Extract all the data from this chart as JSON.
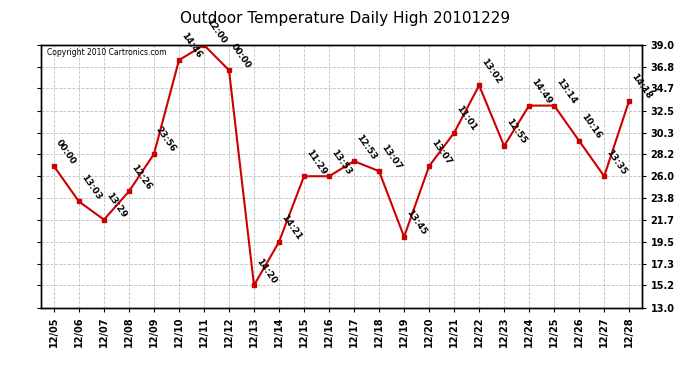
{
  "title": "Outdoor Temperature Daily High 20101229",
  "copyright": "Copyright 2010 Cartronics.com",
  "dates": [
    "12/05",
    "12/06",
    "12/07",
    "12/08",
    "12/09",
    "12/10",
    "12/11",
    "12/12",
    "12/13",
    "12/14",
    "12/15",
    "12/16",
    "12/17",
    "12/18",
    "12/19",
    "12/20",
    "12/21",
    "12/22",
    "12/23",
    "12/24",
    "12/25",
    "12/26",
    "12/27",
    "12/28"
  ],
  "temperatures": [
    27.0,
    23.5,
    21.7,
    24.5,
    28.2,
    37.5,
    39.0,
    36.5,
    15.2,
    19.5,
    26.0,
    26.0,
    27.5,
    26.5,
    20.0,
    27.0,
    30.3,
    35.0,
    29.0,
    33.0,
    33.0,
    29.5,
    26.0,
    33.5
  ],
  "times": [
    "00:00",
    "13:03",
    "13:29",
    "12:26",
    "23:56",
    "14:46",
    "12:00",
    "00:00",
    "14:20",
    "14:21",
    "11:29",
    "13:53",
    "12:53",
    "13:07",
    "13:45",
    "13:07",
    "11:01",
    "13:02",
    "12:55",
    "14:49",
    "13:14",
    "10:16",
    "13:35",
    "14:18"
  ],
  "ylim": [
    13.0,
    39.0
  ],
  "yticks": [
    13.0,
    15.2,
    17.3,
    19.5,
    21.7,
    23.8,
    26.0,
    28.2,
    30.3,
    32.5,
    34.7,
    36.8,
    39.0
  ],
  "line_color": "#cc0000",
  "marker_color": "#cc0000",
  "bg_color": "#ffffff",
  "grid_color": "#c0c0c0",
  "title_fontsize": 11,
  "tick_fontsize": 7,
  "annotation_fontsize": 6.5
}
